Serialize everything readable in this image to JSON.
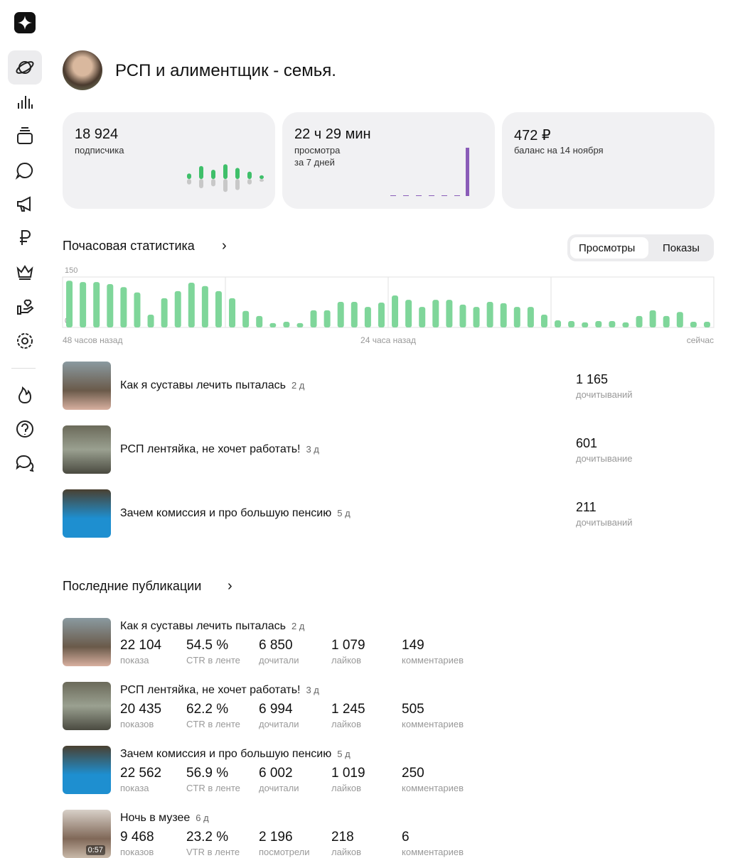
{
  "header": {
    "title": "РСП и алиментщик - семья."
  },
  "cards": [
    {
      "value": "18 924",
      "label": "подписчика",
      "up": [
        6,
        14,
        10,
        16,
        12,
        8,
        4
      ],
      "down": [
        6,
        10,
        8,
        14,
        12,
        6,
        3
      ]
    },
    {
      "value": "22 ч 29 мин",
      "label": "просмотра",
      "sublabel": "за 7 дней",
      "bars": [
        1,
        1,
        1,
        1,
        1,
        1,
        68
      ]
    },
    {
      "value": "472 ₽",
      "label": "баланс на 14 ноября"
    }
  ],
  "hourly": {
    "title": "Почасовая статистика",
    "tabs": [
      "Просмотры",
      "Показы"
    ],
    "ylim": [
      0,
      150
    ],
    "yticks": [
      0,
      150
    ],
    "x_labels": [
      "48 часов назад",
      "24 часа назад",
      "сейчас"
    ],
    "values": [
      139,
      135,
      135,
      129,
      120,
      104,
      38,
      87,
      108,
      133,
      123,
      108,
      87,
      49,
      34,
      13,
      17,
      13,
      51,
      51,
      76,
      76,
      61,
      74,
      95,
      82,
      61,
      82,
      82,
      68,
      61,
      76,
      72,
      61,
      61,
      38,
      21,
      19,
      15,
      19,
      19,
      15,
      34,
      51,
      34,
      46,
      17,
      17
    ]
  },
  "top_articles": [
    {
      "title": "Как я суставы лечить пыталась",
      "age": "2 д",
      "value": "1 165",
      "label": "дочитываний"
    },
    {
      "title": "РСП лентяйка, не хочет работать!",
      "age": "3 д",
      "value": "601",
      "label": "дочитывание"
    },
    {
      "title": "Зачем комиссия и про большую пенсию",
      "age": "5 д",
      "value": "211",
      "label": "дочитываний"
    }
  ],
  "publications": {
    "title": "Последние публикации",
    "items": [
      {
        "title": "Как я суставы лечить пыталась",
        "age": "2 д",
        "stats": [
          [
            "22 104",
            "показа"
          ],
          [
            "54.5 %",
            "CTR в ленте"
          ],
          [
            "6 850",
            "дочитали"
          ],
          [
            "1 079",
            "лайков"
          ],
          [
            "149",
            "комментариев"
          ]
        ]
      },
      {
        "title": "РСП лентяйка, не хочет работать!",
        "age": "3 д",
        "stats": [
          [
            "20 435",
            "показов"
          ],
          [
            "62.2 %",
            "CTR в ленте"
          ],
          [
            "6 994",
            "дочитали"
          ],
          [
            "1 245",
            "лайков"
          ],
          [
            "505",
            "комментариев"
          ]
        ]
      },
      {
        "title": "Зачем комиссия и про большую пенсию",
        "age": "5 д",
        "stats": [
          [
            "22 562",
            "показа"
          ],
          [
            "56.9 %",
            "CTR в ленте"
          ],
          [
            "6 002",
            "дочитали"
          ],
          [
            "1 019",
            "лайков"
          ],
          [
            "250",
            "комментариев"
          ]
        ]
      },
      {
        "title": "Ночь в музее",
        "age": "6 д",
        "duration": "0:57",
        "stats": [
          [
            "9 468",
            "показов"
          ],
          [
            "23.2 %",
            "VTR в ленте"
          ],
          [
            "2 196",
            "посмотрели"
          ],
          [
            "218",
            "лайков"
          ],
          [
            "6",
            "комментариев"
          ]
        ]
      }
    ]
  }
}
